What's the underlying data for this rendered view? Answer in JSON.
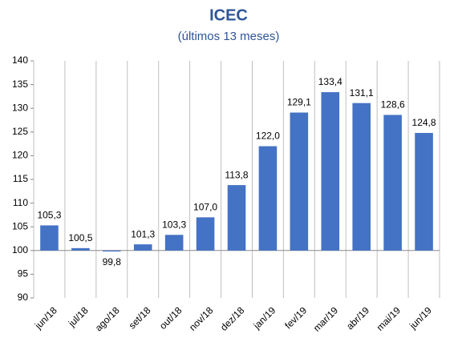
{
  "chart_data": {
    "type": "bar",
    "title": "ICEC",
    "subtitle": "(últimos 13 meses)",
    "categories": [
      "jun/18",
      "jul/18",
      "ago/18",
      "set/18",
      "out/18",
      "nov/18",
      "dez/18",
      "jan/19",
      "fev/19",
      "mar/19",
      "abr/19",
      "mai/19",
      "jun/19"
    ],
    "values": [
      105.3,
      100.5,
      99.8,
      101.3,
      103.3,
      107.0,
      113.8,
      122.0,
      129.1,
      133.4,
      131.1,
      128.6,
      124.8
    ],
    "value_labels": [
      "105,3",
      "100,5",
      "99,8",
      "101,3",
      "103,3",
      "107,0",
      "113,8",
      "122,0",
      "129,1",
      "133,4",
      "131,1",
      "128,6",
      "124,8"
    ],
    "color": "#4472c4",
    "baseline": 100,
    "ylim": [
      90,
      140
    ],
    "yticks": [
      90,
      95,
      100,
      105,
      110,
      115,
      120,
      125,
      130,
      135,
      140
    ]
  }
}
